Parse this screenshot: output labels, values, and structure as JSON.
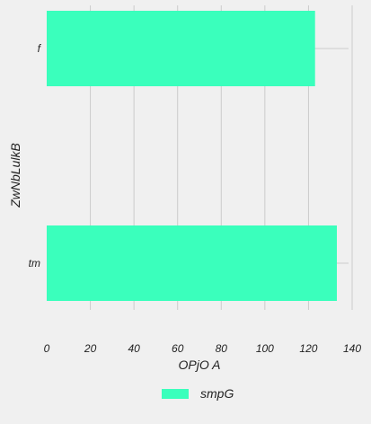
{
  "chart_data": {
    "type": "bar",
    "orientation": "horizontal",
    "categories": [
      "f",
      "tm"
    ],
    "series": [
      {
        "name": "smpG",
        "values": [
          123,
          133
        ],
        "color": "#3affbc"
      }
    ],
    "xlabel": "OPjO A",
    "ylabel": "ZwNbLulkB",
    "xlim": [
      0,
      140
    ],
    "xticks": [
      0,
      20,
      40,
      60,
      80,
      100,
      120,
      140
    ],
    "grid": true,
    "legend_position": "bottom-center",
    "background": "#f0f0f0",
    "grid_color": "#cbcbcb"
  }
}
